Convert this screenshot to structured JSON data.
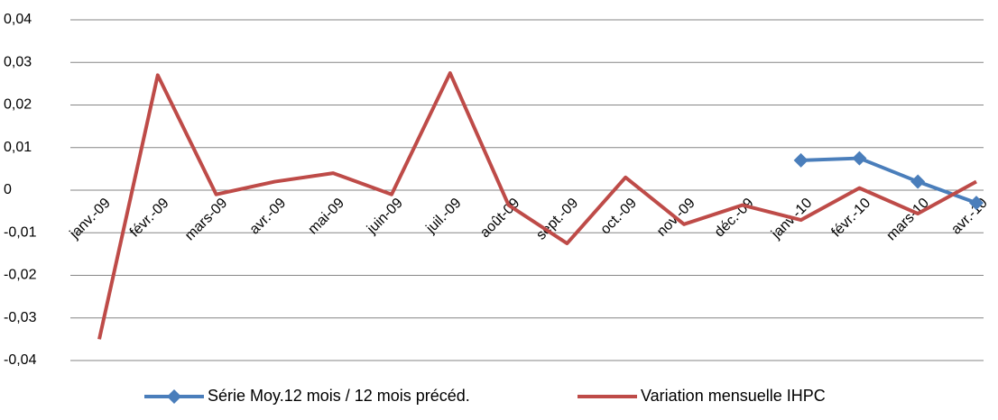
{
  "chart_data": {
    "type": "line",
    "categories": [
      "janv.-09",
      "févr.-09",
      "mars-09",
      "avr.-09",
      "mai-09",
      "juin-09",
      "juil.-09",
      "août-09",
      "sept.-09",
      "oct.-09",
      "nov.-09",
      "déc.-09",
      "janv.-10",
      "févr.-10",
      "mars-10",
      "avr.-10"
    ],
    "series": [
      {
        "name": "Série Moy.12 mois / 12 mois précéd.",
        "color": "#4a7ebb",
        "marker": "diamond",
        "values": [
          null,
          null,
          null,
          null,
          null,
          null,
          null,
          null,
          null,
          null,
          null,
          null,
          0.007,
          0.0075,
          0.002,
          -0.003
        ]
      },
      {
        "name": "Variation mensuelle IHPC",
        "color": "#be4b48",
        "values": [
          -0.035,
          0.027,
          -0.001,
          0.002,
          0.004,
          -0.001,
          0.0275,
          -0.0035,
          -0.0125,
          0.003,
          -0.008,
          -0.0035,
          -0.007,
          0.0005,
          -0.0055,
          0.002
        ]
      }
    ],
    "ylim": [
      -0.04,
      0.04
    ],
    "yticks": [
      {
        "value": -0.04,
        "label": "-0,04"
      },
      {
        "value": -0.03,
        "label": "-0,03"
      },
      {
        "value": -0.02,
        "label": "-0,02"
      },
      {
        "value": -0.01,
        "label": "-0,01"
      },
      0,
      {
        "value": 0.01,
        "label": "0,01"
      },
      {
        "value": 0.02,
        "label": "0,02"
      },
      {
        "value": 0.03,
        "label": "0,03"
      },
      {
        "value": 0.04,
        "label": "0,04"
      }
    ],
    "grid": true,
    "legend": "bottom"
  }
}
